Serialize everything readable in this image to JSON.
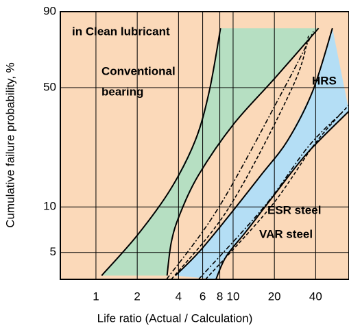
{
  "chart_data": {
    "type": "band",
    "x_label": "Life ratio (Actual / Calculation)",
    "y_label": "Cumulative failure probability, %",
    "x_log": true,
    "y_scale": "weibull",
    "xlim": [
      0.55,
      70
    ],
    "xticks": [
      1,
      2,
      4,
      6,
      8,
      10,
      20,
      40
    ],
    "ylim": [
      3.3,
      90
    ],
    "yticks": [
      5,
      10,
      50,
      90
    ],
    "grid": true,
    "background": "#fbd9b9",
    "bands": [
      {
        "color": "#b6dfc2",
        "lower": {
          "x": [
            1.1,
            2,
            3.5,
            5.3,
            6.7,
            8.1
          ],
          "y": [
            3.5,
            6.5,
            13,
            26,
            48,
            83
          ]
        },
        "upper": {
          "x": [
            3.3,
            3.55,
            4.1,
            5.6,
            10,
            20,
            42
          ],
          "y": [
            3.5,
            5.9,
            9,
            16,
            32,
            55,
            83
          ]
        }
      },
      {
        "color": "#b4def5",
        "lower": {
          "x": [
            3.8,
            5.6,
            8.9,
            16,
            25,
            38,
            53
          ],
          "y": [
            3.5,
            5,
            8.3,
            16,
            26,
            48,
            83
          ]
        },
        "upper": {
          "x": [
            7.5,
            8.9,
            12.6,
            20,
            35,
            70
          ],
          "y": [
            3.3,
            4.7,
            7,
            12,
            22,
            38
          ]
        }
      }
    ],
    "lines": [
      {
        "style": "dashdot",
        "x": [
          3.27,
          7.9,
          23.7,
          38.5
        ],
        "y": [
          3.3,
          10,
          50,
          81.4
        ]
      },
      {
        "style": "dashed",
        "x": [
          3.55,
          9.4,
          27,
          35.5
        ],
        "y": [
          3.3,
          10,
          50,
          79.2
        ]
      },
      {
        "style": "dashdot",
        "x": [
          5.6,
          16.8,
          35.5,
          63
        ],
        "y": [
          3.3,
          10,
          24,
          37.7
        ]
      },
      {
        "style": "dashed",
        "x": [
          6.3,
          18.8,
          40,
          70
        ],
        "y": [
          3.3,
          10,
          25.2,
          41
        ]
      }
    ],
    "annotations": [
      "in Clean lubricant",
      "Conventional",
      "bearing",
      "HRS",
      "ESR steel",
      "VAR steel"
    ]
  }
}
